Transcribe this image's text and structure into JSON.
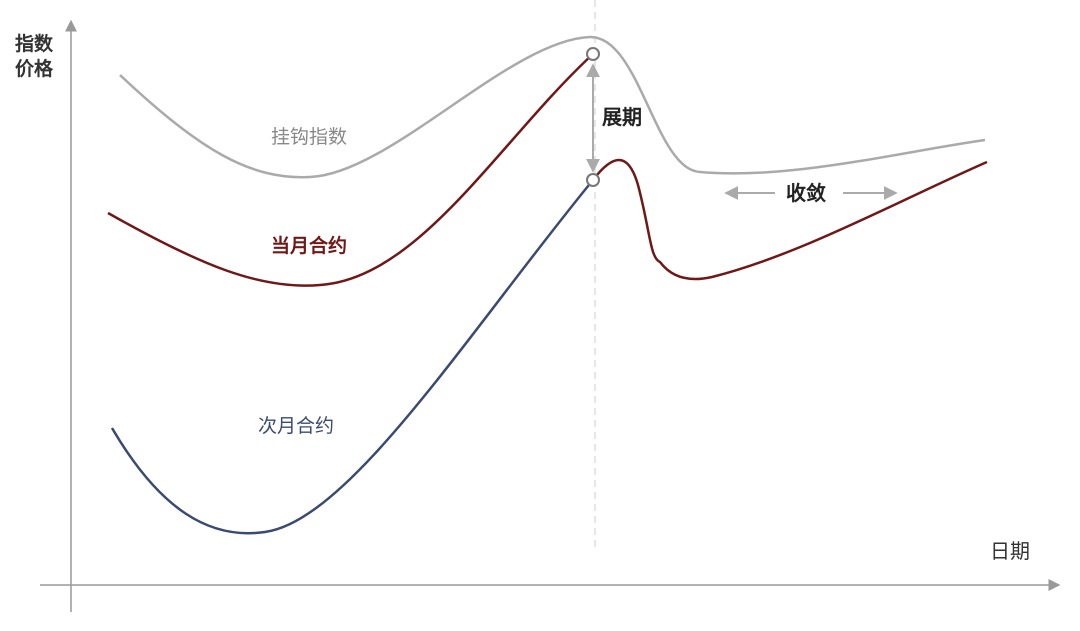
{
  "axes": {
    "y_label_line1": "指数",
    "y_label_line2": "价格",
    "x_label": "日期"
  },
  "curves": {
    "index": {
      "label": "挂钩指数",
      "color": "#aaaaaa"
    },
    "current_month": {
      "label": "当月合约",
      "color": "#701818"
    },
    "next_month": {
      "label": "次月合约",
      "color": "#3a4a70"
    }
  },
  "annotations": {
    "rollover": "展期",
    "convergence": "收敛"
  },
  "colors": {
    "axis": "#999999",
    "arrow": "#aaaaaa",
    "guide": "#dddddd",
    "text_dark": "#222222"
  }
}
